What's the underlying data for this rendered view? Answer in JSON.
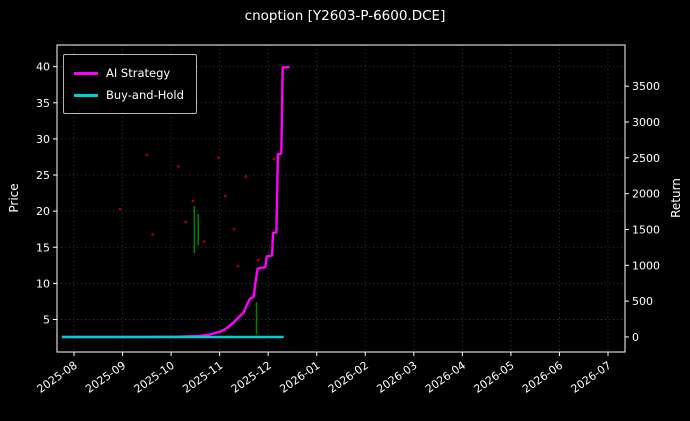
{
  "title": "cnoption [Y2603-P-6600.DCE]",
  "axes": {
    "left_label": "Price",
    "right_label": "Return"
  },
  "legend": [
    {
      "label": "AI Strategy",
      "color": "#ff00ff"
    },
    {
      "label": "Buy-and-Hold",
      "color": "#00ced1"
    }
  ],
  "chart_data": {
    "type": "line",
    "title": "cnoption [Y2603-P-6600.DCE]",
    "xlabel": "",
    "ylabel_left": "Price",
    "ylabel_right": "Return",
    "x_tick_labels": [
      "2025-08",
      "2025-09",
      "2025-10",
      "2025-11",
      "2025-12",
      "2026-01",
      "2026-02",
      "2026-03",
      "2026-04",
      "2026-05",
      "2026-06",
      "2026-07"
    ],
    "x_domain": [
      -0.35,
      11.35
    ],
    "price_ylim": [
      0.5,
      43
    ],
    "return_ylim": [
      -210,
      4075
    ],
    "left_ticks": [
      5,
      10,
      15,
      20,
      25,
      30,
      35,
      40
    ],
    "right_ticks": [
      0,
      500,
      1000,
      1500,
      2000,
      2500,
      3000,
      3500
    ],
    "grid": "dotted",
    "legend_position": "upper-left",
    "series": [
      {
        "name": "AI Strategy",
        "axis": "return",
        "type": "line",
        "color": "#ff00ff",
        "width": 2.4,
        "points": [
          [
            -0.25,
            0
          ],
          [
            1.5,
            0
          ],
          [
            2.2,
            5
          ],
          [
            2.6,
            15
          ],
          [
            2.8,
            35
          ],
          [
            3.0,
            70
          ],
          [
            3.1,
            105
          ],
          [
            3.2,
            150
          ],
          [
            3.3,
            210
          ],
          [
            3.4,
            280
          ],
          [
            3.5,
            345
          ],
          [
            3.55,
            430
          ],
          [
            3.62,
            530
          ],
          [
            3.7,
            560
          ],
          [
            3.73,
            720
          ],
          [
            3.78,
            950
          ],
          [
            3.82,
            960
          ],
          [
            3.94,
            975
          ],
          [
            3.97,
            1125
          ],
          [
            4.08,
            1135
          ],
          [
            4.1,
            1450
          ],
          [
            4.17,
            1460
          ],
          [
            4.2,
            2550
          ],
          [
            4.27,
            2560
          ],
          [
            4.3,
            3760
          ],
          [
            4.44,
            3770
          ]
        ]
      },
      {
        "name": "Buy-and-Hold",
        "axis": "return",
        "type": "line",
        "color": "#00ced1",
        "width": 2.4,
        "points": [
          [
            -0.25,
            0
          ],
          [
            4.32,
            0
          ]
        ]
      },
      {
        "name": "price-up-candles",
        "axis": "price",
        "type": "vbar",
        "color": "#008000",
        "segments": [
          {
            "x": 2.48,
            "low": 14.2,
            "high": 20.7
          },
          {
            "x": 2.56,
            "low": 15.3,
            "high": 19.6
          },
          {
            "x": 3.76,
            "low": 2.9,
            "high": 7.4
          }
        ]
      },
      {
        "name": "price-dots",
        "axis": "price",
        "type": "scatter",
        "color": "#a00000",
        "points": [
          [
            0.95,
            20.3
          ],
          [
            1.5,
            27.8
          ],
          [
            1.62,
            16.8
          ],
          [
            2.15,
            26.2
          ],
          [
            2.3,
            18.5
          ],
          [
            2.45,
            21.4
          ],
          [
            2.68,
            15.8
          ],
          [
            2.98,
            27.4
          ],
          [
            3.12,
            22.1
          ],
          [
            3.3,
            17.5
          ],
          [
            3.38,
            12.4
          ],
          [
            3.54,
            24.8
          ],
          [
            3.8,
            13.2
          ],
          [
            4.12,
            27.2
          ]
        ]
      }
    ]
  }
}
